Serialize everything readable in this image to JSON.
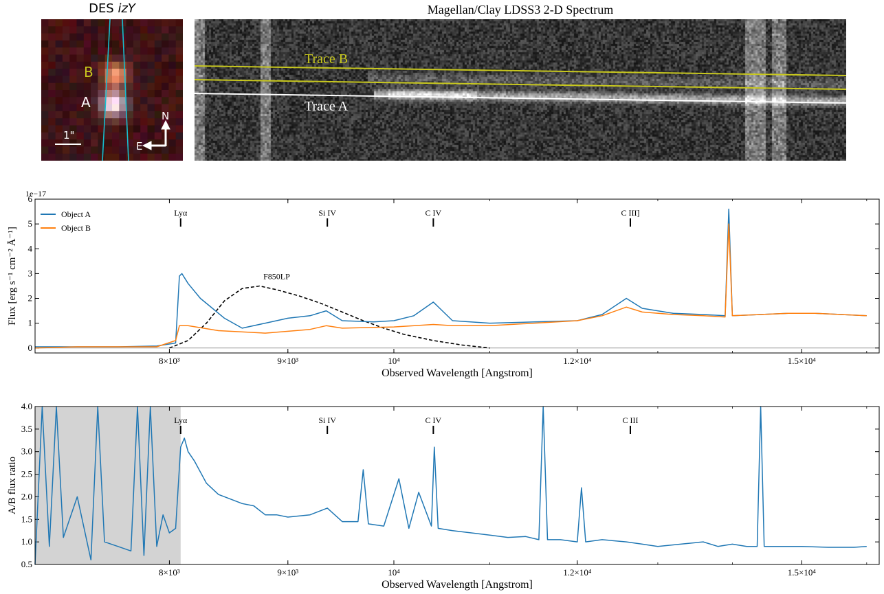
{
  "panels": {
    "cutout": {
      "title_prefix": "DES ",
      "title_bands": "izY",
      "labels": {
        "a": "A",
        "b": "B",
        "north": "N",
        "east": "E",
        "scale": "1\""
      }
    },
    "spectrum_2d": {
      "title": "Magellan/Clay LDSS3 2-D Spectrum",
      "trace_a": "Trace A",
      "trace_b": "Trace B"
    }
  },
  "colors": {
    "object_a": "#1f77b4",
    "object_b": "#ff7f0e",
    "trace_b": "#c8c81e",
    "slit": "#17becf",
    "filter": "#000000",
    "masked_region": "#d3d3d3"
  },
  "chart_data": [
    {
      "type": "line",
      "title": "",
      "xlabel": "Observed Wavelength [Angstrom]",
      "ylabel": "Flux [erg s⁻¹ cm⁻² Å⁻¹]",
      "y_multiplier": "1e−17",
      "x_scale": "log",
      "xlim": [
        7000,
        16200
      ],
      "ylim": [
        -0.2,
        6
      ],
      "x_ticks": [
        {
          "value": 8000,
          "label": "8×10³"
        },
        {
          "value": 9000,
          "label": "9×10³"
        },
        {
          "value": 10000,
          "label": "10⁴"
        },
        {
          "value": 12000,
          "label": "1.2×10⁴"
        },
        {
          "value": 15000,
          "label": "1.5×10⁴"
        }
      ],
      "y_ticks": [
        0,
        1,
        2,
        3,
        4,
        5,
        6
      ],
      "legend": {
        "placement": "top-left",
        "entries": [
          "Object A",
          "Object B"
        ]
      },
      "lines": [
        {
          "label": "Lyα",
          "x": 8090
        },
        {
          "label": "Si IV",
          "x": 9360
        },
        {
          "label": "C IV",
          "x": 10400
        },
        {
          "label": "C III]",
          "x": 12650
        }
      ],
      "filter_curve": {
        "label": "F850LP",
        "x": [
          8000,
          8150,
          8300,
          8450,
          8600,
          8750,
          8900,
          9100,
          9300,
          9500,
          9700,
          9900,
          10100,
          10400,
          10700,
          11000
        ],
        "y": [
          0.0,
          0.3,
          1.0,
          1.9,
          2.4,
          2.5,
          2.35,
          2.1,
          1.8,
          1.45,
          1.1,
          0.8,
          0.55,
          0.3,
          0.12,
          0.0
        ]
      },
      "series": [
        {
          "name": "Object A",
          "x": [
            7000,
            7300,
            7600,
            7900,
            8050,
            8080,
            8100,
            8150,
            8250,
            8350,
            8450,
            8600,
            8800,
            9000,
            9200,
            9350,
            9500,
            9800,
            10000,
            10200,
            10400,
            10600,
            11000,
            11500,
            12000,
            12300,
            12600,
            12800,
            13200,
            13600,
            13900,
            13950,
            14000,
            14400,
            14800,
            15200,
            15600,
            16000
          ],
          "y": [
            0.05,
            0.05,
            0.05,
            0.08,
            0.2,
            2.9,
            3.0,
            2.6,
            2.0,
            1.6,
            1.2,
            0.8,
            1.0,
            1.2,
            1.3,
            1.5,
            1.1,
            1.05,
            1.1,
            1.3,
            1.85,
            1.1,
            1.0,
            1.05,
            1.1,
            1.35,
            2.0,
            1.6,
            1.4,
            1.35,
            1.3,
            5.6,
            1.3,
            1.35,
            1.4,
            1.4,
            1.35,
            1.3
          ]
        },
        {
          "name": "Object B",
          "x": [
            7000,
            7300,
            7600,
            7900,
            8050,
            8080,
            8150,
            8400,
            8800,
            9200,
            9350,
            9500,
            10000,
            10400,
            10600,
            11000,
            11500,
            12000,
            12300,
            12600,
            12800,
            13200,
            13600,
            13900,
            13950,
            14000,
            14400,
            14800,
            15200,
            15600,
            16000
          ],
          "y": [
            0.0,
            0.05,
            0.05,
            0.05,
            0.3,
            0.9,
            0.9,
            0.7,
            0.6,
            0.75,
            0.9,
            0.8,
            0.85,
            0.95,
            0.9,
            0.9,
            1.0,
            1.1,
            1.3,
            1.65,
            1.45,
            1.35,
            1.3,
            1.25,
            5.0,
            1.3,
            1.35,
            1.4,
            1.4,
            1.35,
            1.3
          ]
        }
      ]
    },
    {
      "type": "line",
      "title": "",
      "xlabel": "Observed Wavelength [Angstrom]",
      "ylabel": "A/B flux ratio",
      "x_scale": "log",
      "xlim": [
        7000,
        16200
      ],
      "ylim": [
        0.5,
        4.0
      ],
      "x_ticks": [
        {
          "value": 8000,
          "label": "8×10³"
        },
        {
          "value": 9000,
          "label": "9×10³"
        },
        {
          "value": 10000,
          "label": "10⁴"
        },
        {
          "value": 12000,
          "label": "1.2×10⁴"
        },
        {
          "value": 15000,
          "label": "1.5×10⁴"
        }
      ],
      "y_ticks": [
        {
          "value": 0.5,
          "label": "0.5"
        },
        {
          "value": 1.0,
          "label": "1.0"
        },
        {
          "value": 1.5,
          "label": "1.5"
        },
        {
          "value": 2.0,
          "label": "2.0"
        },
        {
          "value": 2.5,
          "label": "2.5"
        },
        {
          "value": 3.0,
          "label": "3.0"
        },
        {
          "value": 3.5,
          "label": "3.5"
        },
        {
          "value": 4.0,
          "label": "4.0"
        }
      ],
      "masked_range": [
        7000,
        8090
      ],
      "lines": [
        {
          "label": "Lyα",
          "x": 8090
        },
        {
          "label": "Si IV",
          "x": 9360
        },
        {
          "label": "C IV",
          "x": 10400
        },
        {
          "label": "C III",
          "x": 12650
        }
      ],
      "series": [
        {
          "name": "",
          "x": [
            7000,
            7050,
            7100,
            7150,
            7200,
            7300,
            7400,
            7450,
            7500,
            7600,
            7700,
            7750,
            7800,
            7850,
            7900,
            7950,
            8000,
            8050,
            8090,
            8120,
            8150,
            8200,
            8300,
            8400,
            8500,
            8600,
            8700,
            8800,
            8900,
            9000,
            9200,
            9360,
            9500,
            9650,
            9700,
            9750,
            9900,
            10050,
            10150,
            10250,
            10380,
            10410,
            10450,
            10600,
            10800,
            11000,
            11200,
            11400,
            11550,
            11600,
            11650,
            11800,
            12000,
            12050,
            12100,
            12300,
            12600,
            12800,
            13000,
            13300,
            13600,
            13800,
            14000,
            14200,
            14350,
            14400,
            14450,
            14600,
            15000,
            15400,
            15800,
            16000
          ],
          "y": [
            0.5,
            4.0,
            0.9,
            4.0,
            1.1,
            2.0,
            0.6,
            4.0,
            1.0,
            0.9,
            0.8,
            4.0,
            0.7,
            4.0,
            0.9,
            1.6,
            1.2,
            1.3,
            3.1,
            3.3,
            3.0,
            2.8,
            2.3,
            2.05,
            1.95,
            1.85,
            1.8,
            1.6,
            1.6,
            1.55,
            1.6,
            1.75,
            1.45,
            1.45,
            2.6,
            1.4,
            1.35,
            2.4,
            1.3,
            2.1,
            1.35,
            3.1,
            1.3,
            1.25,
            1.2,
            1.15,
            1.1,
            1.12,
            1.05,
            4.0,
            1.05,
            1.05,
            1.0,
            2.2,
            1.0,
            1.05,
            1.0,
            0.95,
            0.9,
            0.95,
            1.0,
            0.9,
            0.95,
            0.9,
            0.9,
            4.0,
            0.9,
            0.9,
            0.9,
            0.88,
            0.88,
            0.9
          ]
        }
      ]
    }
  ]
}
